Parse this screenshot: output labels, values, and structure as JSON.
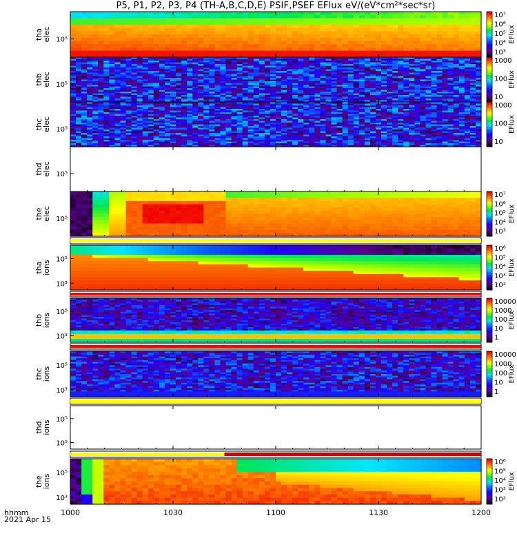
{
  "title": "P5, P1, P2, P3, P4 (TH-A,B,C,D,E) PSIF,PSEF EFlux eV/(eV*cm²*sec*sr)",
  "footer": {
    "line1": "hhmm",
    "line2": "2021 Apr 15"
  },
  "chart_data": {
    "type": "heatmap",
    "x_ticks": [
      "1000",
      "1030",
      "1100",
      "1130",
      "1200"
    ],
    "x_range": [
      "10:00",
      "12:00"
    ],
    "colorbar_label": "EFlux",
    "panels": [
      {
        "name": "tha elec",
        "ylabel": [
          "tha",
          "elec"
        ],
        "ytick": "10⁵",
        "pattern": "tha_elec",
        "colorbar": [
          "10⁷",
          "10⁶",
          "10⁵",
          "10⁴",
          "10³"
        ]
      },
      {
        "name": "thb elec",
        "ylabel": [
          "thb",
          "elec"
        ],
        "ytick": "10⁵",
        "pattern": "noise",
        "colorbar": [
          "1000",
          "100",
          "10"
        ]
      },
      {
        "name": "thc elec",
        "ylabel": [
          "thc",
          "elec"
        ],
        "ytick": "10⁵",
        "pattern": "noise",
        "colorbar": [
          "1000",
          "100",
          "10"
        ]
      },
      {
        "name": "thd elec",
        "ylabel": [
          "thd",
          "elec"
        ],
        "ytick": "10⁵",
        "pattern": "empty",
        "colorbar": []
      },
      {
        "name": "the elec",
        "ylabel": [
          "the",
          "elec"
        ],
        "ytick": "10⁵",
        "pattern": "the_elec",
        "colorbar": [
          "10⁷",
          "10⁶",
          "10⁵",
          "10⁴",
          "10³"
        ]
      },
      {
        "name": "tha ions",
        "ylabel": [
          "tha",
          "ions"
        ],
        "ytick": [
          "10⁵",
          "10³"
        ],
        "pattern": "tha_ions",
        "colorbar": [
          "10⁶",
          "10⁵",
          "10⁴",
          "10³",
          "10²"
        ]
      },
      {
        "name": "thb ions",
        "ylabel": [
          "thb",
          "ions"
        ],
        "ytick": [
          "10⁵",
          "10³"
        ],
        "pattern": "thb_ions",
        "colorbar": [
          "10000",
          "1000",
          "100",
          "10",
          "1"
        ]
      },
      {
        "name": "thc ions",
        "ylabel": [
          "thc",
          "ions"
        ],
        "ytick": [
          "10⁵",
          "10³"
        ],
        "pattern": "thc_ions",
        "colorbar": [
          "10000",
          "1000",
          "100",
          "10",
          "1"
        ]
      },
      {
        "name": "thd ions",
        "ylabel": [
          "thd",
          "ions"
        ],
        "ytick": [
          "10⁵",
          "10⁵"
        ],
        "pattern": "empty",
        "colorbar": []
      },
      {
        "name": "the ions",
        "ylabel": [
          "the",
          "ions"
        ],
        "ytick": [
          "10⁵",
          "10³"
        ],
        "pattern": "the_ions",
        "colorbar": [
          "10⁶",
          "10⁵",
          "10⁴",
          "10³",
          "10²"
        ]
      }
    ],
    "status_bars": [
      {
        "after": "the elec",
        "color": "#ffff00"
      },
      {
        "after": "tha ions",
        "color": "#ff0000"
      },
      {
        "after": "thb ions",
        "color": "#ff0000"
      },
      {
        "after": "thc ions",
        "color": "#ffff00"
      },
      {
        "after": "thd ions",
        "segments": [
          {
            "color": "#ffff00",
            "to": "10:45"
          },
          {
            "color": "#d00000",
            "from": "10:45"
          }
        ]
      }
    ]
  }
}
